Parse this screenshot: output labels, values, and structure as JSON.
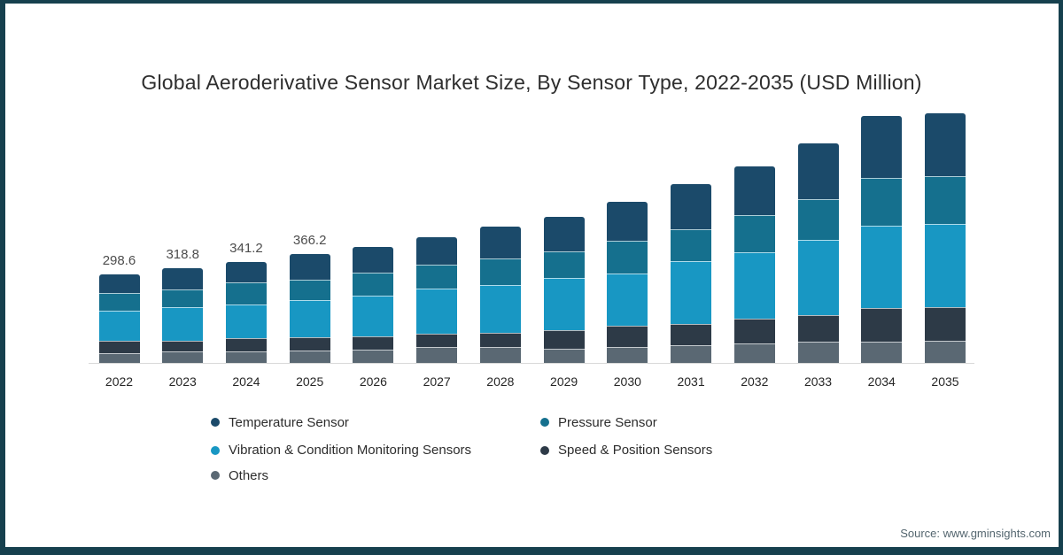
{
  "title": "Global Aeroderivative Sensor Market Size, By Sensor Type, 2022-2035 (USD Million)",
  "source": "Source: www.gminsights.com",
  "colors": {
    "temperature_sensor": "#1b4a6a",
    "pressure_sensor": "#15708e",
    "vibration_condition_monitoring": "#1897c3",
    "speed_position_sensors": "#2d3a47",
    "others": "#5a6873",
    "frame_border": "#16404e",
    "axis_line": "#d9d9d9",
    "background": "#ffffff"
  },
  "chart_data": {
    "type": "bar",
    "stacked": true,
    "title": "Global Aeroderivative Sensor Market Size, By Sensor Type, 2022-2035 (USD Million)",
    "unit": "USD Million",
    "categories": [
      "2022",
      "2023",
      "2024",
      "2025",
      "2026",
      "2027",
      "2028",
      "2029",
      "2030",
      "2031",
      "2032",
      "2033",
      "2034",
      "2035"
    ],
    "series": [
      {
        "name": "Temperature Sensor",
        "color": "#1b4a6a",
        "values": [
          61.9,
          71.7,
          71.2,
          84.6,
          86.1,
          94.1,
          109.0,
          117.0,
          131.9,
          151.5,
          163.4,
          188.0,
          208.8,
          213.0
        ]
      },
      {
        "name": "Pressure Sensor",
        "color": "#15708e",
        "values": [
          61.0,
          59.0,
          72.1,
          69.5,
          79.3,
          79.3,
          89.1,
          89.1,
          108.7,
          109.0,
          126.8,
          138.7,
          160.3,
          159.0
        ]
      },
      {
        "name": "Vibration & Condition Monitoring Sensors",
        "color": "#1897c3",
        "values": [
          102.1,
          114.0,
          114.8,
          125.5,
          135.7,
          153.3,
          162.2,
          175.2,
          178.2,
          211.8,
          221.9,
          252.5,
          280.1,
          282.2
        ]
      },
      {
        "name": "Speed & Position Sensors",
        "color": "#2d3a47",
        "values": [
          40.8,
          36.6,
          44.5,
          44.8,
          44.0,
          44.6,
          45.7,
          64.0,
          70.4,
          70.4,
          85.0,
          90.9,
          111.1,
          112.0
        ]
      },
      {
        "name": "Others",
        "color": "#5a6873",
        "values": [
          32.8,
          37.5,
          38.6,
          41.8,
          46.0,
          52.6,
          54.4,
          46.5,
          53.5,
          59.4,
          64.4,
          70.4,
          72.2,
          74.3
        ]
      }
    ],
    "stack_order_bottom_to_top": [
      "Others",
      "Speed & Position Sensors",
      "Vibration & Condition Monitoring Sensors",
      "Pressure Sensor",
      "Temperature Sensor"
    ],
    "totals_labeled": {
      "2022": "298.6",
      "2023": "318.8",
      "2024": "341.2",
      "2025": "366.2"
    },
    "y_axis_visible": false,
    "gridlines": false,
    "legend_position": "bottom"
  },
  "legend": {
    "items": [
      {
        "label": "Temperature Sensor",
        "color": "#1b4a6a",
        "column": 1,
        "row": 1
      },
      {
        "label": "Pressure Sensor",
        "color": "#15708e",
        "column": 2,
        "row": 1
      },
      {
        "label": "Vibration & Condition Monitoring Sensors",
        "color": "#1897c3",
        "column": 1,
        "row": 2
      },
      {
        "label": "Speed & Position Sensors",
        "color": "#2d3a47",
        "column": 2,
        "row": 2
      },
      {
        "label": "Others",
        "color": "#5a6873",
        "column": 1,
        "row": 3
      }
    ]
  }
}
